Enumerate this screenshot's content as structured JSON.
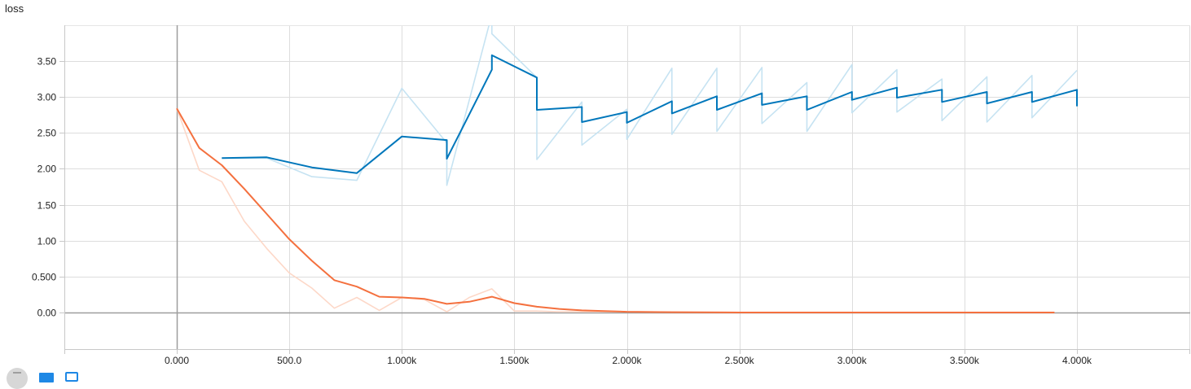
{
  "chart_data": {
    "type": "line",
    "title": "loss",
    "xlabel": "",
    "ylabel": "",
    "xlim": [
      -500,
      4500
    ],
    "ylim": [
      -0.5,
      4.0
    ],
    "x_ticks": [
      {
        "value": 0,
        "label": "0.000"
      },
      {
        "value": 500,
        "label": "500.0"
      },
      {
        "value": 1000,
        "label": "1.000k"
      },
      {
        "value": 1500,
        "label": "1.500k"
      },
      {
        "value": 2000,
        "label": "2.000k"
      },
      {
        "value": 2500,
        "label": "2.500k"
      },
      {
        "value": 3000,
        "label": "3.000k"
      },
      {
        "value": 3500,
        "label": "3.500k"
      },
      {
        "value": 4000,
        "label": "4.000k"
      }
    ],
    "y_ticks": [
      {
        "value": 0,
        "label": "0.00"
      },
      {
        "value": 0.5,
        "label": "0.500"
      },
      {
        "value": 1.0,
        "label": "1.00"
      },
      {
        "value": 1.5,
        "label": "1.50"
      },
      {
        "value": 2.0,
        "label": "2.00"
      },
      {
        "value": 2.5,
        "label": "2.50"
      },
      {
        "value": 3.0,
        "label": "3.00"
      },
      {
        "value": 3.5,
        "label": "3.50"
      }
    ],
    "grid": true,
    "series": [
      {
        "key": "blue_raw",
        "color": "#c6e3f2",
        "values": [
          [
            200,
            2.15
          ],
          [
            400,
            2.15
          ],
          [
            600,
            1.89
          ],
          [
            800,
            1.84
          ],
          [
            1000,
            3.12
          ],
          [
            1200,
            2.36
          ],
          [
            1200,
            1.77
          ],
          [
            1400,
            4.15
          ],
          [
            1400,
            3.88
          ],
          [
            1600,
            3.27
          ],
          [
            1600,
            2.13
          ],
          [
            1800,
            2.93
          ],
          [
            1800,
            2.33
          ],
          [
            2000,
            2.83
          ],
          [
            2000,
            2.41
          ],
          [
            2200,
            3.4
          ],
          [
            2200,
            2.48
          ],
          [
            2400,
            3.4
          ],
          [
            2400,
            2.52
          ],
          [
            2600,
            3.41
          ],
          [
            2600,
            2.63
          ],
          [
            2800,
            3.2
          ],
          [
            2800,
            2.52
          ],
          [
            3000,
            3.45
          ],
          [
            3000,
            2.78
          ],
          [
            3200,
            3.38
          ],
          [
            3200,
            2.79
          ],
          [
            3400,
            3.25
          ],
          [
            3400,
            2.67
          ],
          [
            3600,
            3.28
          ],
          [
            3600,
            2.65
          ],
          [
            3800,
            3.3
          ],
          [
            3800,
            2.71
          ],
          [
            4000,
            3.37
          ]
        ]
      },
      {
        "key": "blue_smoothed",
        "color": "#0077bb",
        "values": [
          [
            200,
            2.15
          ],
          [
            400,
            2.16
          ],
          [
            600,
            2.02
          ],
          [
            800,
            1.94
          ],
          [
            1000,
            2.45
          ],
          [
            1200,
            2.4
          ],
          [
            1200,
            2.14
          ],
          [
            1400,
            3.38
          ],
          [
            1400,
            3.58
          ],
          [
            1600,
            3.27
          ],
          [
            1600,
            2.82
          ],
          [
            1800,
            2.86
          ],
          [
            1800,
            2.65
          ],
          [
            2000,
            2.79
          ],
          [
            2000,
            2.64
          ],
          [
            2200,
            2.94
          ],
          [
            2200,
            2.77
          ],
          [
            2400,
            3.01
          ],
          [
            2400,
            2.82
          ],
          [
            2600,
            3.05
          ],
          [
            2600,
            2.89
          ],
          [
            2800,
            3.01
          ],
          [
            2800,
            2.82
          ],
          [
            3000,
            3.07
          ],
          [
            3000,
            2.96
          ],
          [
            3200,
            3.13
          ],
          [
            3200,
            2.99
          ],
          [
            3400,
            3.1
          ],
          [
            3400,
            2.93
          ],
          [
            3600,
            3.07
          ],
          [
            3600,
            2.91
          ],
          [
            3800,
            3.07
          ],
          [
            3800,
            2.93
          ],
          [
            4000,
            3.1
          ],
          [
            4000,
            2.87
          ]
        ]
      },
      {
        "key": "orange_raw",
        "color": "#fdd8c8",
        "values": [
          [
            0,
            2.84
          ],
          [
            100,
            1.98
          ],
          [
            200,
            1.82
          ],
          [
            300,
            1.27
          ],
          [
            400,
            0.89
          ],
          [
            500,
            0.55
          ],
          [
            600,
            0.34
          ],
          [
            700,
            0.06
          ],
          [
            800,
            0.21
          ],
          [
            900,
            0.03
          ],
          [
            1000,
            0.21
          ],
          [
            1100,
            0.18
          ],
          [
            1200,
            0.01
          ],
          [
            1300,
            0.21
          ],
          [
            1400,
            0.33
          ],
          [
            1500,
            0.02
          ],
          [
            1600,
            0.02
          ],
          [
            1700,
            0.01
          ],
          [
            1800,
            0.01
          ],
          [
            2000,
            0.01
          ],
          [
            2500,
            0.0
          ],
          [
            3000,
            0.0
          ],
          [
            3500,
            0.0
          ],
          [
            3900,
            0.0
          ]
        ]
      },
      {
        "key": "orange_smoothed",
        "color": "#f4703e",
        "values": [
          [
            0,
            2.84
          ],
          [
            100,
            2.29
          ],
          [
            200,
            2.05
          ],
          [
            300,
            1.72
          ],
          [
            400,
            1.37
          ],
          [
            500,
            1.02
          ],
          [
            600,
            0.72
          ],
          [
            700,
            0.45
          ],
          [
            800,
            0.36
          ],
          [
            900,
            0.22
          ],
          [
            1000,
            0.21
          ],
          [
            1100,
            0.19
          ],
          [
            1200,
            0.12
          ],
          [
            1300,
            0.15
          ],
          [
            1400,
            0.22
          ],
          [
            1500,
            0.13
          ],
          [
            1600,
            0.08
          ],
          [
            1700,
            0.05
          ],
          [
            1800,
            0.03
          ],
          [
            1900,
            0.02
          ],
          [
            2000,
            0.01
          ],
          [
            2200,
            0.005
          ],
          [
            2500,
            0.0
          ],
          [
            3000,
            0.0
          ],
          [
            3500,
            0.0
          ],
          [
            3900,
            0.0
          ]
        ]
      }
    ]
  },
  "toolbar": {
    "expand_icon": "expand-icon",
    "data_icon": "data-toggle-icon",
    "fit_icon": "fit-domain-icon",
    "accent": "#1e88e5"
  }
}
